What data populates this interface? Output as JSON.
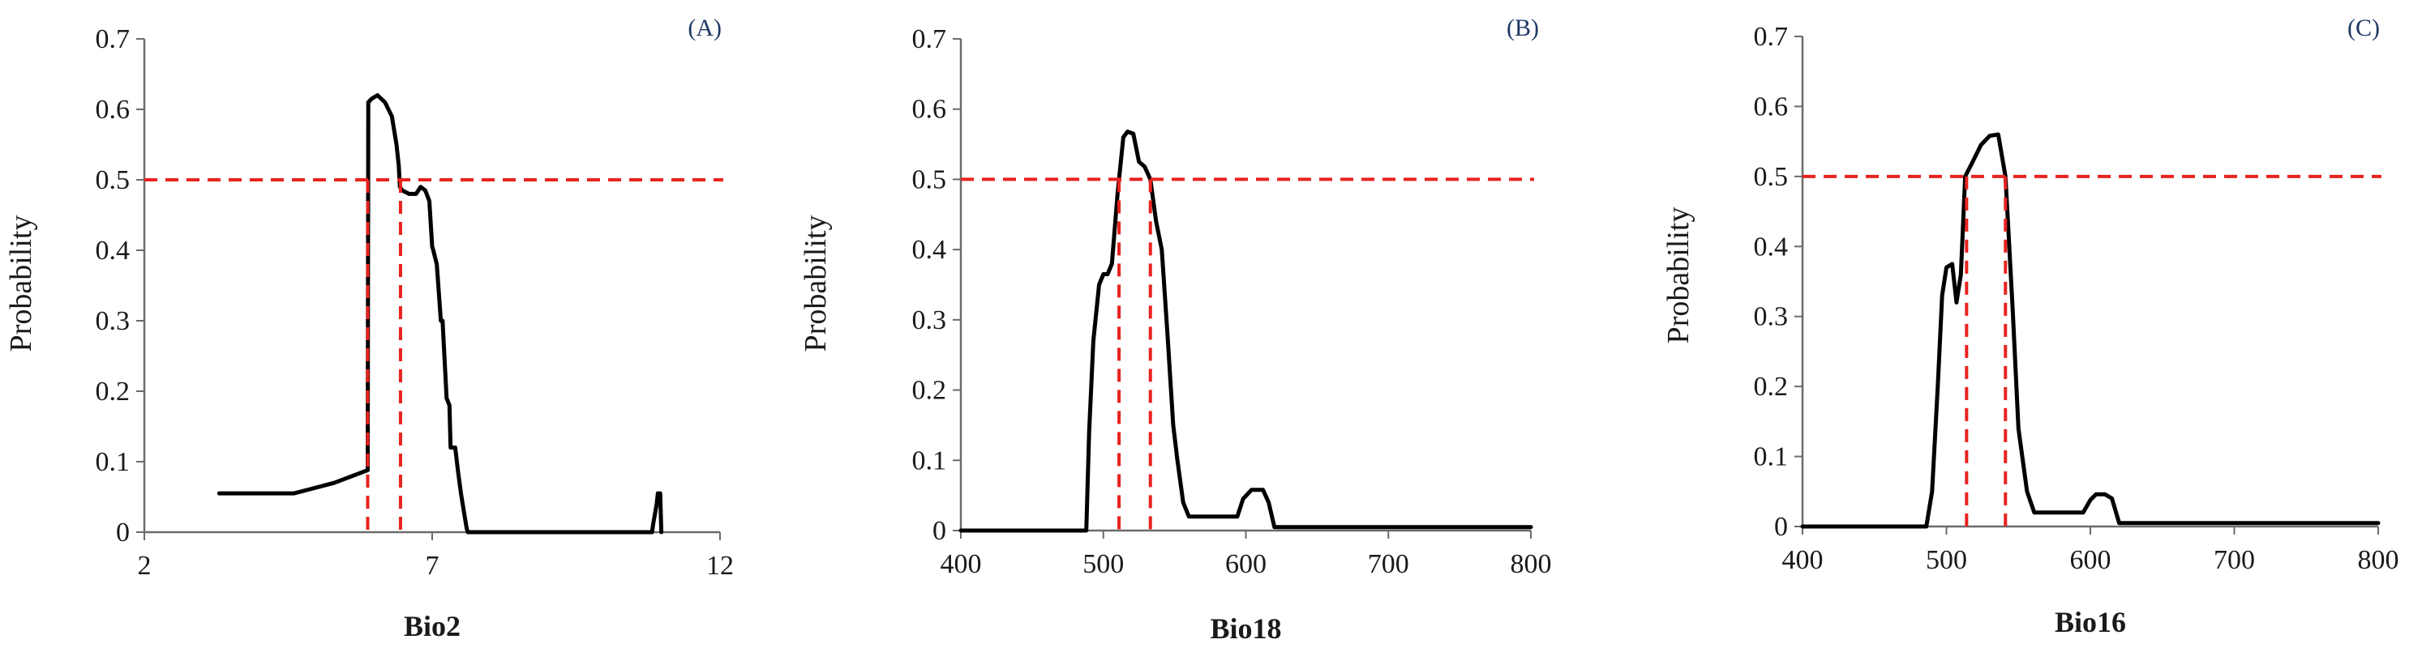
{
  "chart_data": [
    {
      "type": "line",
      "panel_label": "(A)",
      "xlabel": "Bio2",
      "ylabel": "Probability",
      "xlim": [
        2,
        12
      ],
      "ylim": [
        0,
        0.7
      ],
      "x_ticks": [
        2,
        7,
        12
      ],
      "y_ticks": [
        0,
        0.1,
        0.2,
        0.3,
        0.4,
        0.5,
        0.6,
        0.7
      ],
      "threshold": 0.5,
      "threshold_x": [
        5.88,
        6.45
      ],
      "series": [
        {
          "x": [
            3.3,
            4.0,
            4.6,
            5.3,
            5.88,
            5.89,
            5.95,
            6.05,
            6.18,
            6.3,
            6.38,
            6.42,
            6.44,
            6.48,
            6.6,
            6.72,
            6.8,
            6.88,
            6.95,
            7.0,
            7.02,
            7.08,
            7.15,
            7.18,
            7.25,
            7.3,
            7.32,
            7.4,
            7.45,
            7.5,
            7.55,
            7.6,
            7.62,
            9.0,
            10.5,
            10.82,
            10.84,
            10.9,
            10.92,
            10.96,
            10.98
          ],
          "y": [
            0.055,
            0.055,
            0.055,
            0.07,
            0.088,
            0.61,
            0.615,
            0.62,
            0.61,
            0.59,
            0.55,
            0.52,
            0.49,
            0.485,
            0.48,
            0.48,
            0.49,
            0.485,
            0.47,
            0.405,
            0.4,
            0.38,
            0.3,
            0.3,
            0.19,
            0.18,
            0.12,
            0.12,
            0.085,
            0.055,
            0.03,
            0.005,
            0,
            0,
            0,
            0,
            0.012,
            0.04,
            0.055,
            0.055,
            0
          ]
        }
      ]
    },
    {
      "type": "line",
      "panel_label": "(B)",
      "xlabel": "Bio18",
      "ylabel": "Probability",
      "xlim": [
        400,
        800
      ],
      "ylim": [
        0,
        0.7
      ],
      "x_ticks": [
        400,
        500,
        600,
        700,
        800
      ],
      "y_ticks": [
        0,
        0.1,
        0.2,
        0.3,
        0.4,
        0.5,
        0.6,
        0.7
      ],
      "threshold": 0.5,
      "threshold_x": [
        511,
        533
      ],
      "series": [
        {
          "x": [
            400,
            488,
            490,
            493,
            497,
            500,
            503,
            506,
            510,
            514,
            517,
            521,
            525,
            529,
            533,
            537,
            541,
            545,
            549,
            552,
            556,
            560,
            564,
            580,
            594,
            598,
            604,
            612,
            616,
            620,
            700,
            800
          ],
          "y": [
            0,
            0,
            0.14,
            0.27,
            0.35,
            0.365,
            0.365,
            0.38,
            0.48,
            0.56,
            0.568,
            0.565,
            0.525,
            0.518,
            0.5,
            0.44,
            0.4,
            0.28,
            0.15,
            0.1,
            0.04,
            0.02,
            0.02,
            0.02,
            0.02,
            0.045,
            0.058,
            0.058,
            0.04,
            0.005,
            0.005,
            0.005
          ]
        }
      ]
    },
    {
      "type": "line",
      "panel_label": "(C)",
      "xlabel": "Bio16",
      "ylabel": "Probability",
      "xlim": [
        400,
        800
      ],
      "ylim": [
        0,
        0.7
      ],
      "x_ticks": [
        400,
        500,
        600,
        700,
        800
      ],
      "y_ticks": [
        0,
        0.1,
        0.2,
        0.3,
        0.4,
        0.5,
        0.6,
        0.7
      ],
      "threshold": 0.5,
      "threshold_x": [
        514,
        541
      ],
      "series": [
        {
          "x": [
            400,
            486,
            490,
            494,
            497,
            500,
            504,
            507,
            510,
            513,
            518,
            524,
            530,
            536,
            541,
            546,
            550,
            556,
            561,
            575,
            595,
            600,
            604,
            610,
            615,
            620,
            700,
            800
          ],
          "y": [
            0,
            0,
            0.05,
            0.2,
            0.33,
            0.37,
            0.375,
            0.32,
            0.36,
            0.5,
            0.52,
            0.545,
            0.558,
            0.56,
            0.5,
            0.31,
            0.14,
            0.05,
            0.02,
            0.02,
            0.02,
            0.038,
            0.046,
            0.046,
            0.04,
            0.005,
            0.005,
            0.005
          ]
        }
      ]
    }
  ]
}
